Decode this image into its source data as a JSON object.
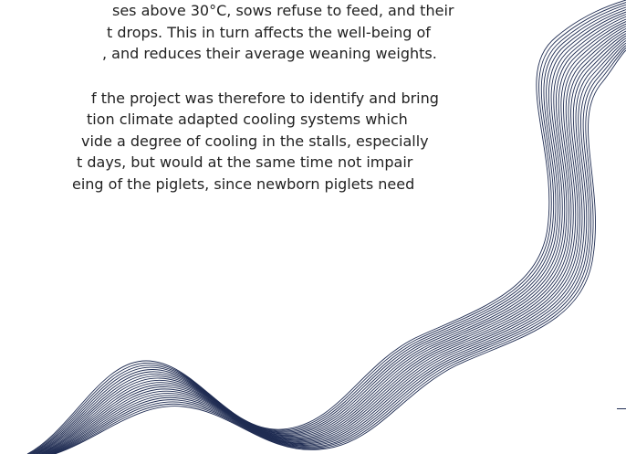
{
  "paragraph_1": {
    "lines": [
      "ses above 30°C, sows refuse to feed, and their",
      "t drops. This in turn affects the well-being of",
      ", and reduces their average weaning weights."
    ]
  },
  "paragraph_2": {
    "lines": [
      "f the project was therefore to identify and bring",
      "tion climate adapted cooling systems which",
      "vide a degree of cooling in the stalls, especially",
      "t days, but would at the same time not impair",
      "eing of the piglets, since newborn piglets need"
    ]
  },
  "decoration": {
    "name": "wave-mesh",
    "stroke_color": "#1f2c52"
  }
}
